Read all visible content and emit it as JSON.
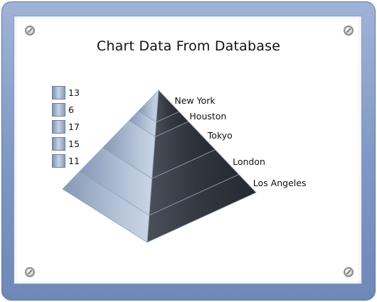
{
  "chart_data": {
    "type": "pyramid",
    "title": "Chart Data From Database",
    "categories": [
      "New York",
      "Houston",
      "Tokyo",
      "London",
      "Los Angeles"
    ],
    "values": [
      13,
      6,
      17,
      15,
      11
    ],
    "legend": {
      "placement": "left",
      "entries": [
        "13",
        "6",
        "17",
        "15",
        "11"
      ]
    }
  },
  "colors": {
    "frame": "#7f97c4",
    "light_face": "#b6c4d8",
    "dark_face": "#3a3f47",
    "seam": "#8fa0bb"
  },
  "icons": [
    "screw-icon"
  ]
}
